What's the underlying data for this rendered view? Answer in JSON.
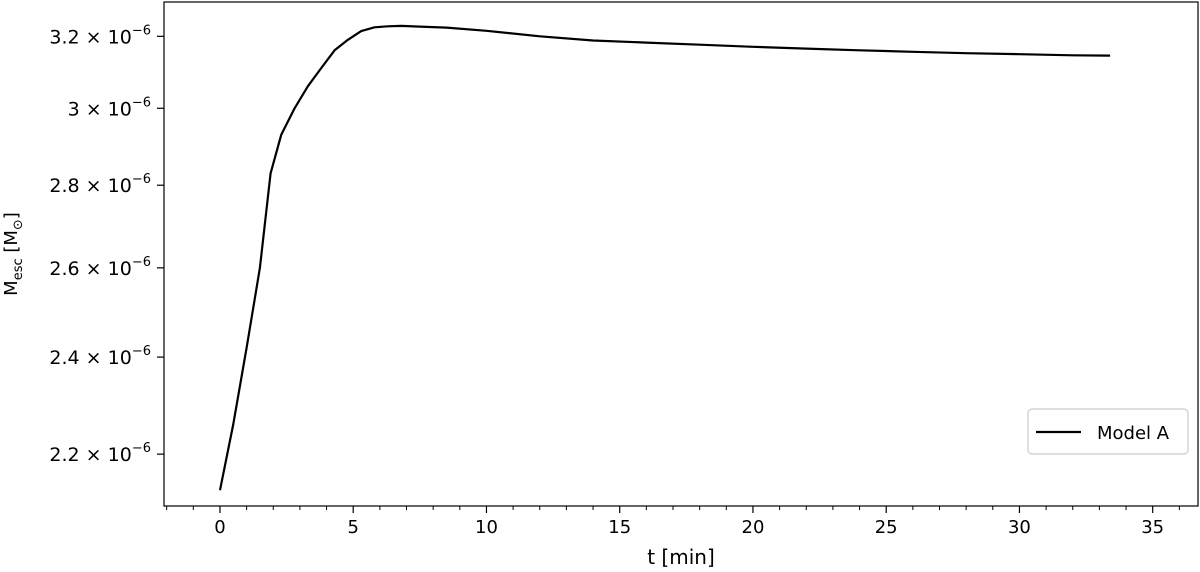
{
  "chart_data": {
    "type": "line",
    "xlabel": "t [min]",
    "ylabel": {
      "main": "M",
      "sub": "esc",
      "unit_open": " [M",
      "unit_sub": "⊙",
      "unit_close": "]"
    },
    "xlim": [
      -2.1,
      36.7
    ],
    "ylim": [
      2.1e-06,
      3.3e-06
    ],
    "y_scale": "log",
    "grid": false,
    "legend_position": "lower right",
    "x_ticks": [
      {
        "value": 0,
        "label": "0"
      },
      {
        "value": 5,
        "label": "5"
      },
      {
        "value": 10,
        "label": "10"
      },
      {
        "value": 15,
        "label": "15"
      },
      {
        "value": 20,
        "label": "20"
      },
      {
        "value": 25,
        "label": "25"
      },
      {
        "value": 30,
        "label": "30"
      },
      {
        "value": 35,
        "label": "35"
      }
    ],
    "x_minor_step": 1,
    "y_ticks": [
      {
        "value": 2.2e-06,
        "mantissa": "2.2",
        "exp": "−6"
      },
      {
        "value": 2.4e-06,
        "mantissa": "2.4",
        "exp": "−6"
      },
      {
        "value": 2.6e-06,
        "mantissa": "2.6",
        "exp": "−6"
      },
      {
        "value": 2.8e-06,
        "mantissa": "2.8",
        "exp": "−6"
      },
      {
        "value": 3e-06,
        "mantissa": "3",
        "exp": "−6"
      },
      {
        "value": 3.2e-06,
        "mantissa": "3.2",
        "exp": "−6"
      }
    ],
    "series": [
      {
        "name": "Model A",
        "color": "#000000",
        "x": [
          0,
          0.5,
          1.0,
          1.5,
          1.9,
          2.3,
          2.8,
          3.3,
          3.8,
          4.3,
          4.8,
          5.3,
          5.8,
          6.3,
          6.8,
          7.5,
          8.5,
          10,
          12,
          14,
          16,
          18,
          20,
          22,
          24,
          26,
          28,
          30,
          32,
          33.4
        ],
        "y": [
          2.13e-06,
          2.26e-06,
          2.42e-06,
          2.6e-06,
          2.83e-06,
          2.93e-06,
          3e-06,
          3.06e-06,
          3.11e-06,
          3.16e-06,
          3.19e-06,
          3.215e-06,
          3.226e-06,
          3.229e-06,
          3.23e-06,
          3.228e-06,
          3.225e-06,
          3.216e-06,
          3.2e-06,
          3.188e-06,
          3.182e-06,
          3.176e-06,
          3.17e-06,
          3.165e-06,
          3.16e-06,
          3.156e-06,
          3.152e-06,
          3.149e-06,
          3.146e-06,
          3.145e-06
        ]
      }
    ]
  }
}
